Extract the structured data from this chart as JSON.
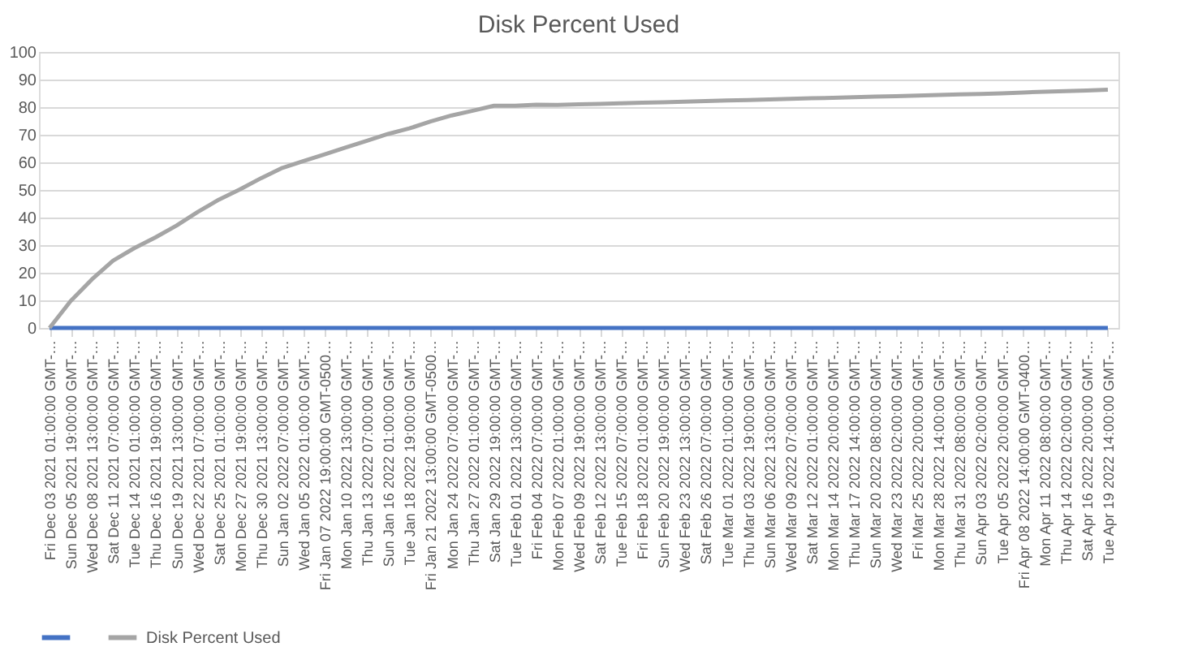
{
  "chart_data": {
    "type": "line",
    "title": "Disk Percent Used",
    "categories": [
      "Fri Dec 03 2021 01:00:00 GMT-…",
      "Sun Dec 05 2021 19:00:00 GMT-…",
      "Wed Dec 08 2021 13:00:00 GMT-…",
      "Sat Dec 11 2021 07:00:00 GMT-…",
      "Tue Dec 14 2021 01:00:00 GMT-…",
      "Thu Dec 16 2021 19:00:00 GMT-…",
      "Sun Dec 19 2021 13:00:00 GMT-…",
      "Wed Dec 22 2021 07:00:00 GMT-…",
      "Sat Dec 25 2021 01:00:00 GMT-…",
      "Mon Dec 27 2021 19:00:00 GMT-…",
      "Thu Dec 30 2021 13:00:00 GMT-…",
      "Sun Jan 02 2022 07:00:00 GMT-…",
      "Wed Jan 05 2022 01:00:00 GMT-…",
      "Fri Jan 07 2022 19:00:00 GMT-0500…",
      "Mon Jan 10 2022 13:00:00 GMT-…",
      "Thu Jan 13 2022 07:00:00 GMT-…",
      "Sun Jan 16 2022 01:00:00 GMT-…",
      "Tue Jan 18 2022 19:00:00 GMT-…",
      "Fri Jan 21 2022 13:00:00 GMT-0500…",
      "Mon Jan 24 2022 07:00:00 GMT-…",
      "Thu Jan 27 2022 01:00:00 GMT-…",
      "Sat Jan 29 2022 19:00:00 GMT-…",
      "Tue Feb 01 2022 13:00:00 GMT-…",
      "Fri Feb 04 2022 07:00:00 GMT-…",
      "Mon Feb 07 2022 01:00:00 GMT-…",
      "Wed Feb 09 2022 19:00:00 GMT-…",
      "Sat Feb 12 2022 13:00:00 GMT-…",
      "Tue Feb 15 2022 07:00:00 GMT-…",
      "Fri Feb 18 2022 01:00:00 GMT-…",
      "Sun Feb 20 2022 19:00:00 GMT-…",
      "Wed Feb 23 2022 13:00:00 GMT-…",
      "Sat Feb 26 2022 07:00:00 GMT-…",
      "Tue Mar 01 2022 01:00:00 GMT-…",
      "Thu Mar 03 2022 19:00:00 GMT-…",
      "Sun Mar 06 2022 13:00:00 GMT-…",
      "Wed Mar 09 2022 07:00:00 GMT-…",
      "Sat Mar 12 2022 01:00:00 GMT-…",
      "Mon Mar 14 2022 20:00:00 GMT-…",
      "Thu Mar 17 2022 14:00:00 GMT-…",
      "Sun Mar 20 2022 08:00:00 GMT-…",
      "Wed Mar 23 2022 02:00:00 GMT-…",
      "Fri Mar 25 2022 20:00:00 GMT-…",
      "Mon Mar 28 2022 14:00:00 GMT-…",
      "Thu Mar 31 2022 08:00:00 GMT-…",
      "Sun Apr 03 2022 02:00:00 GMT-…",
      "Tue Apr 05 2022 20:00:00 GMT-…",
      "Fri Apr 08 2022 14:00:00 GMT-0400…",
      "Mon Apr 11 2022 08:00:00 GMT-…",
      "Thu Apr 14 2022 02:00:00 GMT-…",
      "Sat Apr 16 2022 20:00:00 GMT-…",
      "Tue Apr 19 2022 14:00:00 GMT-…"
    ],
    "series": [
      {
        "color": "#4472c4",
        "values": [
          0,
          0,
          0,
          0,
          0,
          0,
          0,
          0,
          0,
          0,
          0,
          0,
          0,
          0,
          0,
          0,
          0,
          0,
          0,
          0,
          0,
          0,
          0,
          0,
          0,
          0,
          0,
          0,
          0,
          0,
          0,
          0,
          0,
          0,
          0,
          0,
          0,
          0,
          0,
          0,
          0,
          0,
          0,
          0,
          0,
          0,
          0,
          0,
          0,
          0,
          0
        ]
      },
      {
        "name": "Disk Percent Used",
        "color": "#a5a5a5",
        "values": [
          0,
          9.8,
          17.6,
          24.4,
          28.9,
          32.8,
          37.1,
          42,
          46.5,
          50.2,
          54.3,
          58,
          60.5,
          62.9,
          65.4,
          67.8,
          70.3,
          72.3,
          74.8,
          77,
          78.7,
          80.5,
          80.5,
          80.9,
          80.8,
          81,
          81.2,
          81.4,
          81.6,
          81.8,
          82,
          82.2,
          82.4,
          82.6,
          82.8,
          83,
          83.2,
          83.4,
          83.6,
          83.8,
          84,
          84.2,
          84.4,
          84.6,
          84.8,
          85,
          85.3,
          85.6,
          85.8,
          86,
          86.3
        ]
      }
    ],
    "ylim": [
      0,
      100
    ],
    "yticks": [
      0,
      10,
      20,
      30,
      40,
      50,
      60,
      70,
      80,
      90,
      100
    ],
    "grid": "y",
    "legend": "bottom",
    "marker": "none",
    "line_style": "solid"
  }
}
